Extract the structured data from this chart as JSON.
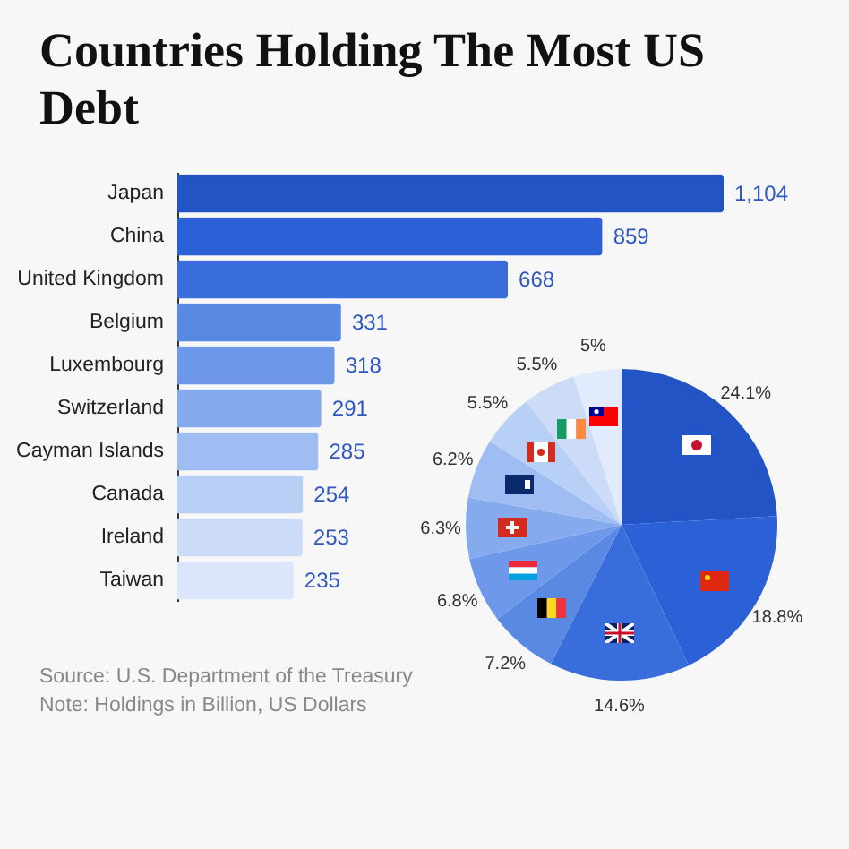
{
  "chart_data": [
    {
      "type": "bar",
      "orientation": "horizontal",
      "title": "Countries Holding The Most US Debt",
      "categories": [
        "Japan",
        "China",
        "United Kingdom",
        "Belgium",
        "Luxembourg",
        "Switzerland",
        "Cayman Islands",
        "Canada",
        "Ireland",
        "Taiwan"
      ],
      "values": [
        1104,
        859,
        668,
        331,
        318,
        291,
        285,
        254,
        253,
        235
      ],
      "colors": [
        "#2254c6",
        "#2b60d6",
        "#3a6ddc",
        "#5a89e4",
        "#6e98ea",
        "#86aaee",
        "#9fbdf2",
        "#b8cff6",
        "#cbdbf8",
        "#dbe6fa"
      ],
      "value_labels": [
        "1,104",
        "859",
        "668",
        "331",
        "318",
        "291",
        "285",
        "254",
        "253",
        "235"
      ],
      "annotations": [
        "Source: U.S. Department of the Treasury",
        "Note: Holdings in Billion, US Dollars"
      ]
    },
    {
      "type": "pie",
      "categories": [
        null,
        null,
        null,
        null,
        null,
        null,
        null,
        null,
        null,
        null
      ],
      "values": [
        24.1,
        18.8,
        14.6,
        7.2,
        6.8,
        6.3,
        6.2,
        5.5,
        5.5,
        5
      ],
      "value_labels": [
        "24.1%",
        "18.8%",
        "14.6%",
        "7.2%",
        "6.8%",
        "6.3%",
        "6.2%",
        "5.5%",
        "5.5%",
        "5%"
      ],
      "colors": [
        "#2254c6",
        "#2b60d6",
        "#3a6ddc",
        "#5a89e4",
        "#6e98ea",
        "#86aaee",
        "#9fbdf2",
        "#b8cff6",
        "#cbdbf8",
        "#e2ebfb"
      ]
    }
  ]
}
